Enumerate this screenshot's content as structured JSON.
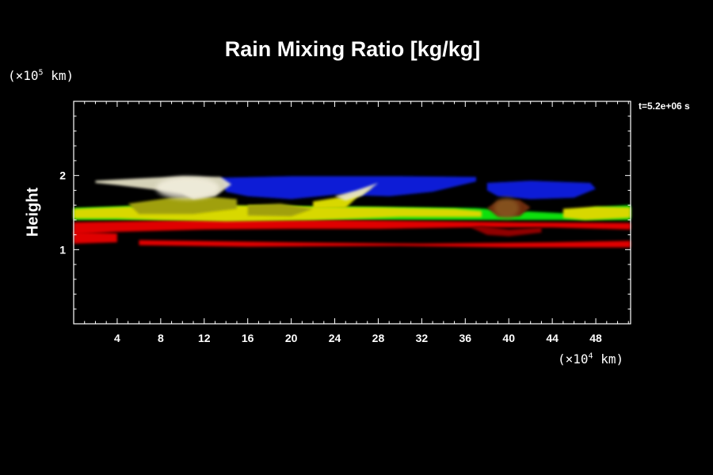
{
  "chart_data": {
    "type": "heatmap",
    "title": "Rain Mixing Ratio [kg/kg]",
    "ylabel": "Height",
    "xlabel": "",
    "time_label": "t=5.2e+06 s",
    "x_unit": {
      "prefix": "(×10",
      "exp": "4",
      "suffix": " km)"
    },
    "y_unit": {
      "prefix": "(×10",
      "exp": "5",
      "suffix": " km)"
    },
    "xlim": [
      0,
      51.2
    ],
    "ylim": [
      0,
      3
    ],
    "x_ticks": [
      "4",
      "8",
      "12",
      "16",
      "20",
      "24",
      "28",
      "32",
      "36",
      "40",
      "44",
      "48"
    ],
    "y_ticks": [
      "1",
      "2"
    ],
    "colors": {
      "background": "#000000",
      "axis": "#ffffff",
      "blue": "#0a1fd6",
      "white": "#e8e4c8",
      "yellow": "#d8d800",
      "olive": "#a0a010",
      "green": "#10e010",
      "red": "#e00000",
      "darkred": "#900000",
      "brown": "#6a2a0a"
    }
  }
}
